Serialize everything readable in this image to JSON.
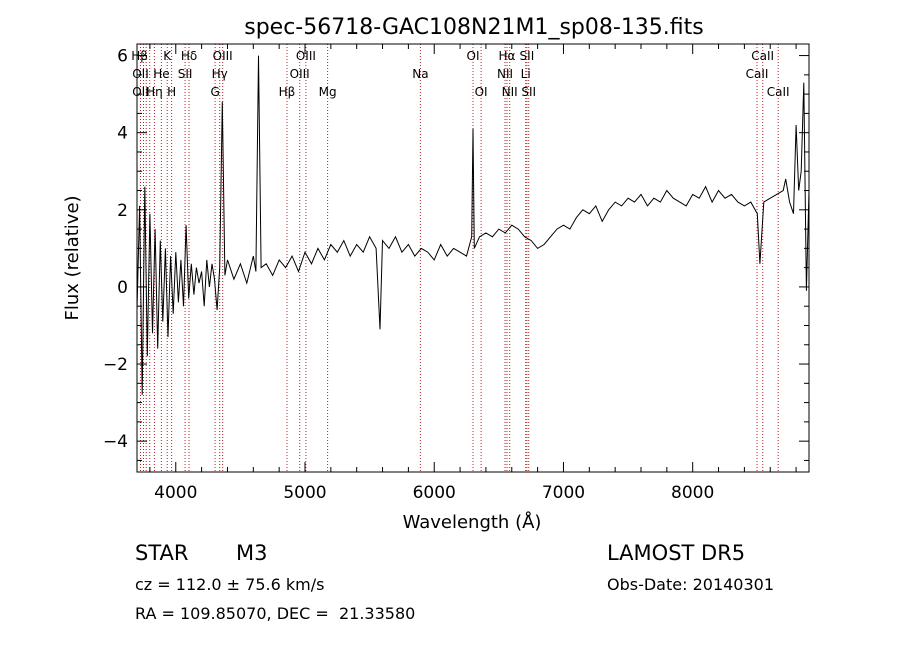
{
  "chart_data": {
    "type": "line",
    "title": "spec-56718-GAC108N21M1_sp08-135.fits",
    "xlabel": "Wavelength (Å)",
    "ylabel": "Flux (relative)",
    "xlim": [
      3700,
      8900
    ],
    "ylim": [
      -4.8,
      6.3
    ],
    "xticks": [
      4000,
      5000,
      6000,
      7000,
      8000
    ],
    "yticks": [
      -4,
      -2,
      0,
      2,
      4,
      6
    ],
    "grid": false,
    "series": [
      {
        "x": [
          3700,
          3720,
          3740,
          3760,
          3780,
          3800,
          3820,
          3840,
          3860,
          3880,
          3900,
          3920,
          3940,
          3960,
          3980,
          4000,
          4020,
          4040,
          4060,
          4080,
          4100,
          4120,
          4140,
          4160,
          4180,
          4200,
          4220,
          4240,
          4260,
          4280,
          4300,
          4320,
          4340,
          4360,
          4380,
          4400,
          4450,
          4500,
          4550,
          4600,
          4620,
          4640,
          4660,
          4700,
          4750,
          4800,
          4850,
          4900,
          4950,
          5000,
          5050,
          5100,
          5150,
          5200,
          5250,
          5300,
          5350,
          5400,
          5450,
          5500,
          5550,
          5580,
          5600,
          5650,
          5700,
          5750,
          5800,
          5850,
          5900,
          5950,
          6000,
          6050,
          6100,
          6150,
          6200,
          6250,
          6290,
          6300,
          6310,
          6350,
          6400,
          6450,
          6500,
          6550,
          6600,
          6650,
          6700,
          6750,
          6800,
          6850,
          6900,
          6950,
          7000,
          7050,
          7100,
          7150,
          7200,
          7250,
          7300,
          7350,
          7400,
          7450,
          7500,
          7550,
          7600,
          7650,
          7700,
          7750,
          7800,
          7850,
          7900,
          7950,
          8000,
          8050,
          8100,
          8150,
          8200,
          8250,
          8300,
          8350,
          8400,
          8450,
          8500,
          8520,
          8550,
          8600,
          8650,
          8700,
          8720,
          8750,
          8780,
          8800,
          8820,
          8840,
          8860,
          8880,
          8900
        ],
        "y": [
          -0.6,
          2.1,
          -2.8,
          2.6,
          -1.8,
          1.9,
          -1.2,
          1.5,
          -1.6,
          1.2,
          -0.9,
          1.0,
          -1.3,
          0.8,
          -0.7,
          0.9,
          -0.4,
          0.7,
          -0.5,
          1.6,
          -0.3,
          0.6,
          -0.2,
          0.5,
          0.1,
          0.4,
          -0.5,
          0.7,
          0.0,
          0.6,
          0.2,
          -0.6,
          0.5,
          4.8,
          0.3,
          0.7,
          0.2,
          0.6,
          0.1,
          0.8,
          0.4,
          6.0,
          0.5,
          0.6,
          0.3,
          0.7,
          0.5,
          0.8,
          0.4,
          0.9,
          0.6,
          1.0,
          0.7,
          1.1,
          0.9,
          1.2,
          0.8,
          1.1,
          0.9,
          1.3,
          1.0,
          -1.1,
          1.2,
          1.0,
          1.3,
          0.9,
          1.1,
          0.8,
          1.0,
          0.9,
          0.7,
          1.1,
          0.8,
          1.0,
          0.9,
          0.8,
          1.3,
          4.1,
          1.0,
          1.3,
          1.4,
          1.3,
          1.5,
          1.4,
          1.6,
          1.5,
          1.3,
          1.2,
          1.0,
          1.1,
          1.3,
          1.5,
          1.6,
          1.5,
          1.8,
          2.0,
          1.9,
          2.1,
          1.7,
          2.0,
          2.2,
          2.1,
          2.3,
          2.2,
          2.4,
          2.1,
          2.3,
          2.2,
          2.5,
          2.3,
          2.2,
          2.1,
          2.4,
          2.3,
          2.6,
          2.2,
          2.5,
          2.3,
          2.4,
          2.2,
          2.1,
          2.2,
          1.9,
          0.6,
          2.2,
          2.3,
          2.4,
          2.5,
          2.8,
          2.2,
          1.9,
          4.2,
          2.5,
          3.0,
          5.3,
          -0.1,
          2.5
        ]
      }
    ],
    "line_annotations": [
      {
        "label": "Hβ",
        "x": 3720,
        "row": 0
      },
      {
        "label": "K",
        "x": 3934,
        "row": 0
      },
      {
        "label": "Hδ",
        "x": 4102,
        "row": 0
      },
      {
        "label": "OIII",
        "x": 4363,
        "row": 0
      },
      {
        "label": "OIII",
        "x": 5007,
        "row": 0
      },
      {
        "label": "OI",
        "x": 6300,
        "row": 0
      },
      {
        "label": "Hα",
        "x": 6563,
        "row": 0
      },
      {
        "label": "SII",
        "x": 6717,
        "row": 0
      },
      {
        "label": "CaII",
        "x": 8542,
        "row": 0
      },
      {
        "label": "OII",
        "x": 3727,
        "row": 1
      },
      {
        "label": "He",
        "x": 3889,
        "row": 1
      },
      {
        "label": "SII",
        "x": 4072,
        "row": 1
      },
      {
        "label": "Hγ",
        "x": 4340,
        "row": 1
      },
      {
        "label": "OIII",
        "x": 4959,
        "row": 1
      },
      {
        "label": "Na",
        "x": 5893,
        "row": 1
      },
      {
        "label": "NII",
        "x": 6548,
        "row": 1
      },
      {
        "label": "Li",
        "x": 6708,
        "row": 1
      },
      {
        "label": "CaII",
        "x": 8498,
        "row": 1
      },
      {
        "label": "OII",
        "x": 3727,
        "row": 2
      },
      {
        "label": "Hη",
        "x": 3835,
        "row": 2
      },
      {
        "label": "H",
        "x": 3968,
        "row": 2
      },
      {
        "label": "G",
        "x": 4304,
        "row": 2
      },
      {
        "label": "Hβ",
        "x": 4861,
        "row": 2
      },
      {
        "label": "Mg",
        "x": 5175,
        "row": 2
      },
      {
        "label": "OI",
        "x": 6363,
        "row": 2
      },
      {
        "label": "NII",
        "x": 6584,
        "row": 2
      },
      {
        "label": "SII",
        "x": 6731,
        "row": 2
      },
      {
        "label": "CaII",
        "x": 8662,
        "row": 2
      }
    ],
    "marker_lines_x": [
      3727,
      3750,
      3771,
      3798,
      3835,
      3889,
      3934,
      3968,
      4072,
      4102,
      4304,
      4340,
      4363,
      4861,
      4959,
      5007,
      5175,
      5893,
      6300,
      6363,
      6548,
      6563,
      6584,
      6708,
      6717,
      6731,
      8498,
      8542,
      8662
    ]
  },
  "info": {
    "object_type": "STAR",
    "subclass": "M3",
    "survey": "LAMOST DR5",
    "cz": "cz = 112.0 ± 75.6 km/s",
    "obs_date": "Obs-Date: 20140301",
    "coords": "RA = 109.85070, DEC =  21.33580"
  },
  "colors": {
    "axis": "#000000",
    "spectrum": "#000000",
    "marker": "#b22222"
  }
}
